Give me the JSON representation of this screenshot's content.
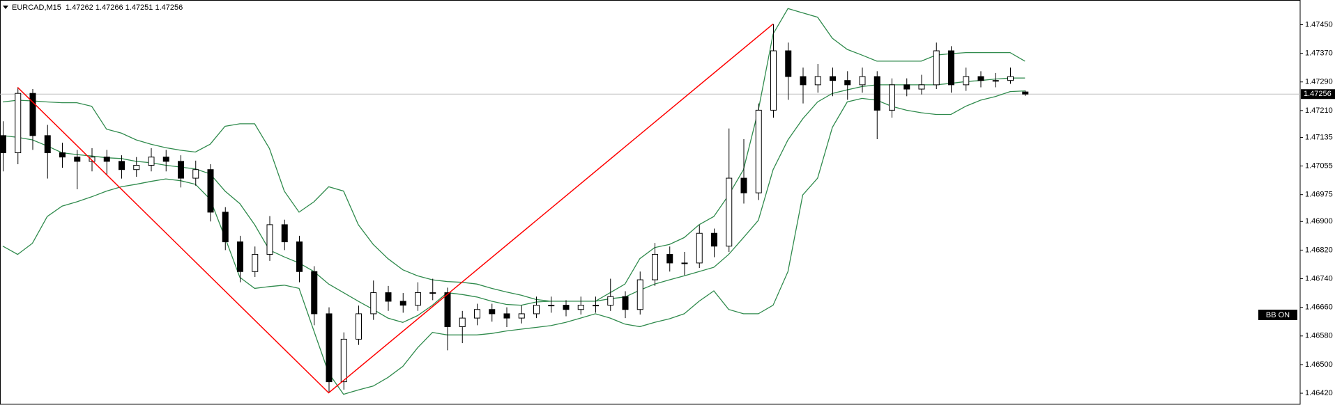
{
  "chart_data": {
    "type": "candlestick",
    "title": "EURCAD,M15  1.47262 1.47266 1.47251 1.47256",
    "indicator_badge": "BB ON",
    "current_price": 1.47256,
    "ylim": [
      1.46389,
      1.47519
    ],
    "yticks": [
      {
        "value": 1.4745,
        "label": "1.47450"
      },
      {
        "value": 1.4737,
        "label": "1.47370"
      },
      {
        "value": 1.4729,
        "label": "1.47290"
      },
      {
        "value": 1.4721,
        "label": "1.47210"
      },
      1.47135,
      1.47055,
      1.46975,
      {
        "value": 1.469,
        "label": "1.46900"
      },
      {
        "value": 1.4682,
        "label": "1.46820"
      },
      {
        "value": 1.4674,
        "label": "1.46740"
      },
      {
        "value": 1.4666,
        "label": "1.46660"
      },
      {
        "value": 1.4658,
        "label": "1.46580"
      },
      {
        "value": 1.465,
        "label": "1.46500"
      },
      {
        "value": 1.4642,
        "label": "1.46420"
      }
    ],
    "grid": false,
    "bull_color": "#ffffff",
    "bear_color": "#000000",
    "open": [
      1.4714,
      1.47092,
      1.47258,
      1.4714,
      1.47092,
      1.4708,
      1.47068,
      1.4708,
      1.47068,
      1.47045,
      1.47057,
      1.4708,
      1.47068,
      1.47021,
      1.47045,
      1.46926,
      1.46843,
      1.4676,
      1.46808,
      1.46891,
      1.46843,
      1.4676,
      1.46642,
      1.46452,
      1.46571,
      1.46642,
      1.46701,
      1.46677,
      1.46666,
      1.46701,
      1.46701,
      1.46606,
      1.4663,
      1.46654,
      1.46642,
      1.4663,
      1.46642,
      1.46666,
      1.46666,
      1.46654,
      1.46666,
      1.46666,
      1.4669,
      1.46654,
      1.46737,
      1.46808,
      1.46784,
      1.46784,
      1.46867,
      1.46831,
      1.47021,
      1.4698,
      1.47211,
      1.47377,
      1.47305,
      1.47282,
      1.47305,
      1.47294,
      1.47282,
      1.47305,
      1.47211,
      1.47282,
      1.4727,
      1.47282,
      1.47377,
      1.47282,
      1.47305,
      1.47294,
      1.47294,
      1.47262
    ],
    "high": [
      1.4718,
      1.47275,
      1.4727,
      1.4717,
      1.4712,
      1.471,
      1.47105,
      1.471,
      1.47085,
      1.4708,
      1.47105,
      1.471,
      1.47085,
      1.4707,
      1.4706,
      1.4694,
      1.4686,
      1.4683,
      1.46915,
      1.46905,
      1.4686,
      1.46775,
      1.4666,
      1.4659,
      1.46665,
      1.46735,
      1.4672,
      1.467,
      1.4673,
      1.4674,
      1.46715,
      1.4665,
      1.4667,
      1.4667,
      1.4666,
      1.46665,
      1.4669,
      1.4669,
      1.4668,
      1.4669,
      1.4669,
      1.4674,
      1.46705,
      1.4676,
      1.4684,
      1.4683,
      1.46815,
      1.4689,
      1.4688,
      1.4716,
      1.4713,
      1.4723,
      1.47452,
      1.474,
      1.4733,
      1.4734,
      1.4733,
      1.4732,
      1.4733,
      1.4732,
      1.473,
      1.473,
      1.4731,
      1.474,
      1.4739,
      1.4733,
      1.4732,
      1.47315,
      1.4733,
      1.47266
    ],
    "low": [
      1.4704,
      1.4706,
      1.471,
      1.4702,
      1.4705,
      1.4699,
      1.4704,
      1.4703,
      1.4702,
      1.47025,
      1.4704,
      1.4704,
      1.46995,
      1.47,
      1.469,
      1.4682,
      1.4673,
      1.46745,
      1.4679,
      1.4682,
      1.4673,
      1.4661,
      1.46421,
      1.4643,
      1.46555,
      1.46625,
      1.4665,
      1.46645,
      1.4665,
      1.4668,
      1.4654,
      1.4656,
      1.4661,
      1.4662,
      1.46605,
      1.46615,
      1.4663,
      1.46645,
      1.46635,
      1.4664,
      1.46645,
      1.4665,
      1.4663,
      1.4664,
      1.4672,
      1.4676,
      1.4675,
      1.4677,
      1.468,
      1.46815,
      1.4695,
      1.4696,
      1.4719,
      1.4724,
      1.4723,
      1.4726,
      1.4725,
      1.4724,
      1.4726,
      1.4713,
      1.4719,
      1.4725,
      1.47255,
      1.4727,
      1.4726,
      1.47265,
      1.47275,
      1.47275,
      1.47285,
      1.47251
    ],
    "close": [
      1.47092,
      1.47258,
      1.4714,
      1.47092,
      1.4708,
      1.47068,
      1.4708,
      1.47068,
      1.47045,
      1.47057,
      1.4708,
      1.47068,
      1.47021,
      1.47045,
      1.46926,
      1.46843,
      1.4676,
      1.46808,
      1.46891,
      1.46843,
      1.4676,
      1.46642,
      1.46452,
      1.46571,
      1.46642,
      1.46701,
      1.46677,
      1.46666,
      1.46701,
      1.46701,
      1.46606,
      1.4663,
      1.46654,
      1.46642,
      1.4663,
      1.46642,
      1.46666,
      1.46666,
      1.46654,
      1.46666,
      1.46666,
      1.4669,
      1.46654,
      1.46737,
      1.46808,
      1.46784,
      1.46784,
      1.46867,
      1.46831,
      1.47021,
      1.4698,
      1.47211,
      1.47377,
      1.47305,
      1.47282,
      1.47305,
      1.47294,
      1.47282,
      1.47305,
      1.47211,
      1.47282,
      1.4727,
      1.47282,
      1.47377,
      1.47282,
      1.47305,
      1.47294,
      1.47294,
      1.47305,
      1.47256
    ],
    "bands": {
      "color": "#2f8a4c",
      "upper": [
        1.47234,
        1.47239,
        1.47237,
        1.47234,
        1.47232,
        1.47232,
        1.47222,
        1.47158,
        1.47147,
        1.47128,
        1.47116,
        1.47106,
        1.47099,
        1.47094,
        1.47116,
        1.47166,
        1.47173,
        1.47173,
        1.47104,
        1.46985,
        1.46926,
        1.46955,
        1.46997,
        1.46985,
        1.46891,
        1.46836,
        1.46796,
        1.46765,
        1.46748,
        1.46737,
        1.46732,
        1.4673,
        1.46725,
        1.46713,
        1.46703,
        1.46694,
        1.46682,
        1.46677,
        1.46677,
        1.46677,
        1.46677,
        1.46701,
        1.46725,
        1.46796,
        1.46827,
        1.46836,
        1.46855,
        1.46891,
        1.46914,
        1.46974,
        1.47045,
        1.47211,
        1.47424,
        1.47495,
        1.47483,
        1.47471,
        1.47412,
        1.47381,
        1.47365,
        1.47348,
        1.47348,
        1.47348,
        1.47348,
        1.47365,
        1.47369,
        1.47372,
        1.47372,
        1.47372,
        1.47372,
        1.47348
      ],
      "middle": [
        1.4714,
        1.47135,
        1.47128,
        1.47111,
        1.47092,
        1.47087,
        1.47083,
        1.47078,
        1.47076,
        1.47068,
        1.47064,
        1.47057,
        1.47052,
        1.47047,
        1.47033,
        1.46985,
        1.4695,
        1.46891,
        1.4682,
        1.46801,
        1.46784,
        1.4676,
        1.46725,
        1.46701,
        1.46677,
        1.46654,
        1.4663,
        1.46618,
        1.46637,
        1.46666,
        1.46701,
        1.46696,
        1.46689,
        1.46677,
        1.46668,
        1.46666,
        1.46675,
        1.46677,
        1.46677,
        1.46677,
        1.46677,
        1.46684,
        1.46689,
        1.46708,
        1.46725,
        1.46737,
        1.46748,
        1.4676,
        1.46772,
        1.46808,
        1.46855,
        1.46903,
        1.47045,
        1.47128,
        1.47187,
        1.47234,
        1.47258,
        1.47268,
        1.47277,
        1.47282,
        1.47282,
        1.47282,
        1.47282,
        1.47282,
        1.47286,
        1.47291,
        1.47294,
        1.47298,
        1.47301,
        1.47301
      ],
      "lower": [
        1.46831,
        1.46808,
        1.46839,
        1.46914,
        1.46943,
        1.46955,
        1.46969,
        1.46985,
        1.46997,
        1.47004,
        1.47012,
        1.47019,
        1.47014,
        1.47004,
        1.46962,
        1.46855,
        1.46744,
        1.46713,
        1.46718,
        1.46722,
        1.46713,
        1.46594,
        1.46476,
        1.46417,
        1.46429,
        1.4644,
        1.46464,
        1.46495,
        1.46547,
        1.4659,
        1.46583,
        1.46583,
        1.46583,
        1.46587,
        1.46594,
        1.46599,
        1.46604,
        1.46609,
        1.46618,
        1.4663,
        1.46642,
        1.4663,
        1.46613,
        1.46606,
        1.46618,
        1.46628,
        1.46642,
        1.46677,
        1.46706,
        1.46654,
        1.46642,
        1.46642,
        1.46666,
        1.4676,
        1.46974,
        1.47021,
        1.47163,
        1.47234,
        1.47244,
        1.47239,
        1.47222,
        1.47211,
        1.47204,
        1.47199,
        1.47199,
        1.47222,
        1.47239,
        1.47249,
        1.47263,
        1.47265
      ]
    },
    "zigzag": {
      "color": "#ff0000",
      "x": [
        1,
        22,
        52
      ],
      "values": [
        1.47275,
        1.46421,
        1.47452
      ]
    }
  }
}
